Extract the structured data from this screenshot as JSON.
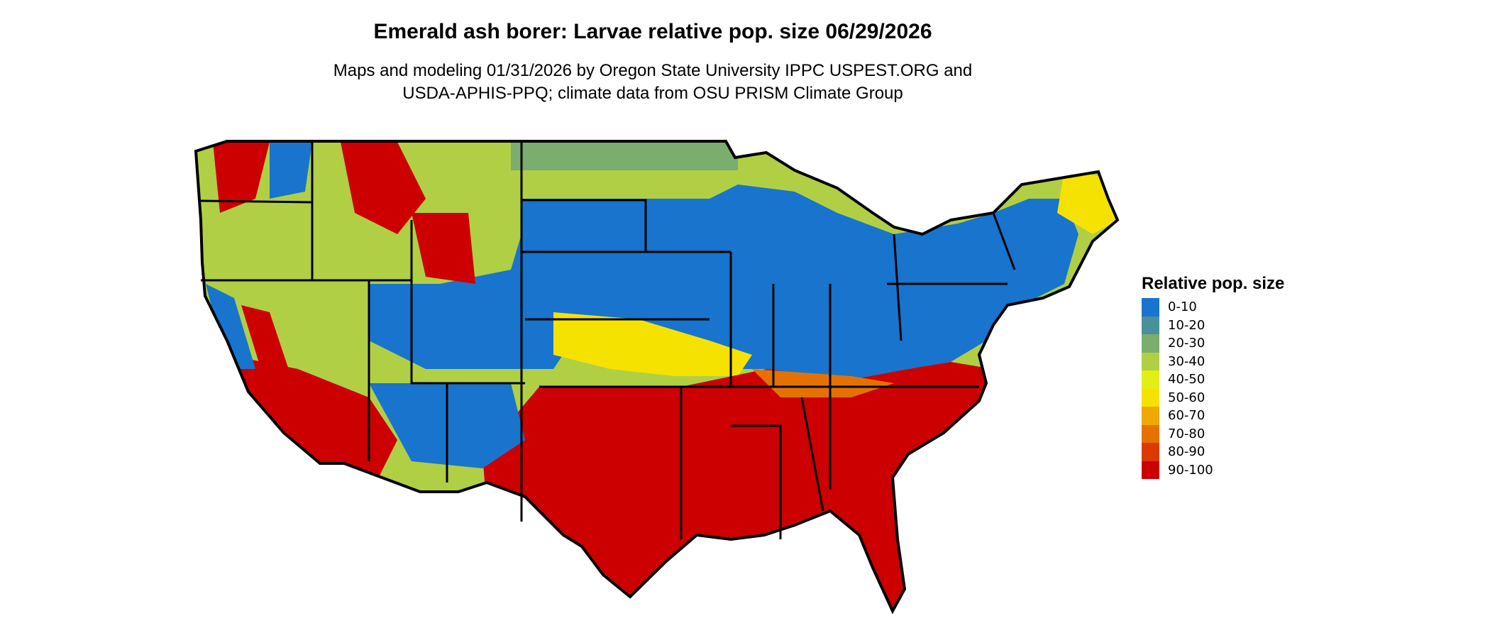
{
  "title": "Emerald ash borer: Larvae relative pop. size 06/29/2026",
  "subtitle_line1": "Maps and modeling 01/31/2026 by Oregon State University IPPC USPEST.ORG and",
  "subtitle_line2": "USDA-APHIS-PPQ; climate data from OSU PRISM Climate Group",
  "chart_data": {
    "type": "heatmap",
    "region": "Contiguous United States",
    "legend": {
      "title": "Relative pop. size",
      "placement": "right",
      "classes": [
        {
          "label": "0-10",
          "color": "#1874cd"
        },
        {
          "label": "10-20",
          "color": "#4a8f9c"
        },
        {
          "label": "20-30",
          "color": "#7aad6e"
        },
        {
          "label": "30-40",
          "color": "#b0cf45"
        },
        {
          "label": "40-50",
          "color": "#e2ee16"
        },
        {
          "label": "50-60",
          "color": "#f6e200"
        },
        {
          "label": "60-70",
          "color": "#eeaa00"
        },
        {
          "label": "70-80",
          "color": "#e57200"
        },
        {
          "label": "80-90",
          "color": "#dc3a00"
        },
        {
          "label": "90-100",
          "color": "#cc0000"
        }
      ]
    }
  }
}
